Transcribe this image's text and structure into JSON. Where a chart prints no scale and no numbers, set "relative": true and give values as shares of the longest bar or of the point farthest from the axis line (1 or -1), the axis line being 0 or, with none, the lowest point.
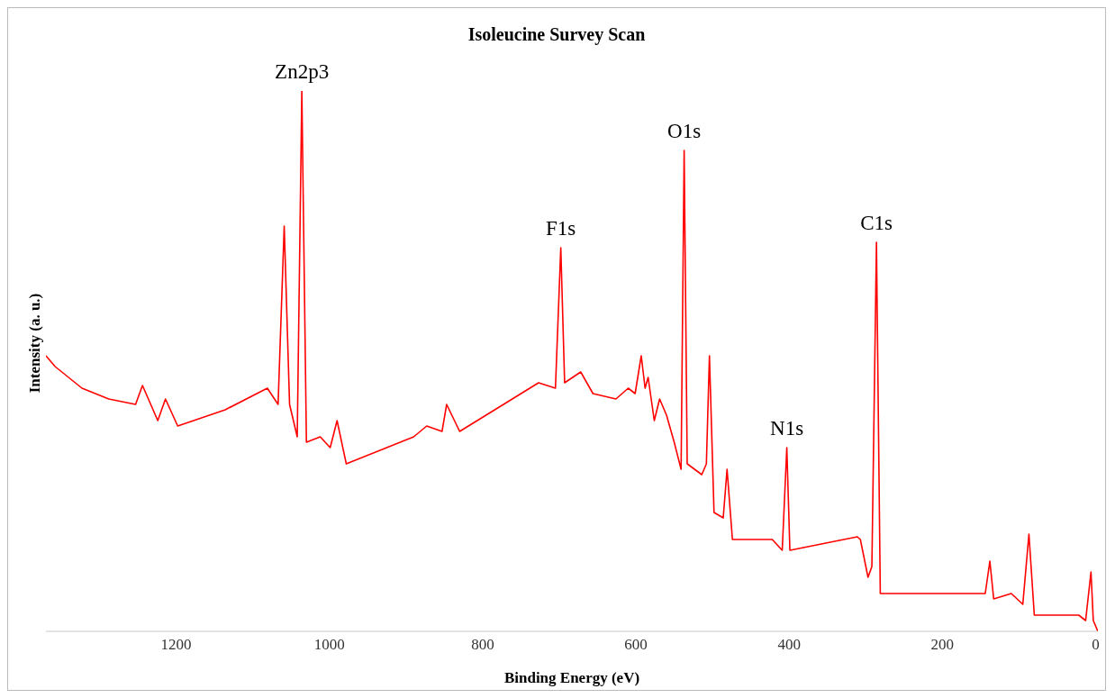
{
  "chart_data": {
    "type": "line",
    "title": "Isoleucine Survey Scan",
    "xlabel": "Binding Energy (eV)",
    "ylabel": "Intensity (a. u.)",
    "relative": true,
    "xlim": [
      1370,
      -3
    ],
    "xticks": [
      1200,
      1000,
      800,
      600,
      400,
      200,
      0
    ],
    "x": [
      1370,
      1358,
      1323,
      1288,
      1253,
      1244,
      1224,
      1214,
      1198,
      1136,
      1081,
      1067,
      1059,
      1052,
      1042,
      1036,
      1030,
      1012,
      999,
      990,
      978,
      890,
      873,
      853,
      847,
      830,
      727,
      705,
      698,
      693,
      672,
      656,
      626,
      610,
      601,
      593,
      588,
      584,
      576,
      569,
      560,
      550,
      541,
      537,
      533,
      514,
      508,
      504,
      498,
      486,
      481,
      474,
      422,
      409,
      403,
      399,
      311,
      307,
      297,
      292,
      286,
      281,
      163,
      144,
      138,
      133,
      110,
      95,
      87,
      80,
      34,
      29,
      22,
      13,
      6,
      3,
      -3
    ],
    "series": [
      {
        "color": "#ff0000",
        "values": [
          0.51,
          0.49,
          0.45,
          0.43,
          0.42,
          0.455,
          0.39,
          0.43,
          0.38,
          0.41,
          0.45,
          0.42,
          0.75,
          0.42,
          0.36,
          1.0,
          0.35,
          0.36,
          0.34,
          0.39,
          0.31,
          0.36,
          0.38,
          0.37,
          0.42,
          0.37,
          0.46,
          0.45,
          0.71,
          0.46,
          0.48,
          0.44,
          0.43,
          0.45,
          0.44,
          0.51,
          0.45,
          0.47,
          0.39,
          0.43,
          0.4,
          0.35,
          0.3,
          0.89,
          0.31,
          0.29,
          0.31,
          0.51,
          0.22,
          0.21,
          0.3,
          0.17,
          0.17,
          0.15,
          0.34,
          0.15,
          0.175,
          0.17,
          0.1,
          0.12,
          0.72,
          0.07,
          0.07,
          0.07,
          0.13,
          0.06,
          0.07,
          0.05,
          0.18,
          0.03,
          0.03,
          0.03,
          0.03,
          0.02,
          0.11,
          0.02,
          0
        ]
      }
    ],
    "annotations": [
      {
        "text": "Zn2p3",
        "x": 1036,
        "y": 1.0
      },
      {
        "text": "F1s",
        "x": 698,
        "y": 0.71
      },
      {
        "text": "O1s",
        "x": 537,
        "y": 0.89
      },
      {
        "text": "N1s",
        "x": 403,
        "y": 0.34
      },
      {
        "text": "C1s",
        "x": 286,
        "y": 0.72
      }
    ]
  }
}
